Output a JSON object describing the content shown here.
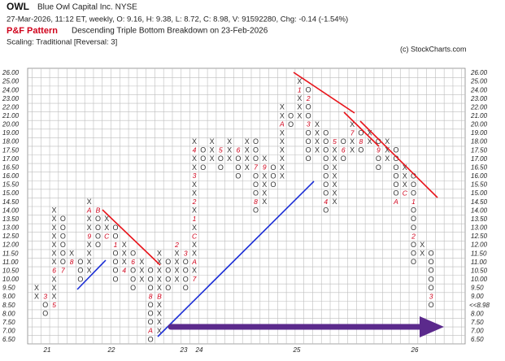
{
  "chart_data": {
    "type": "pnf",
    "title": "OWL",
    "subtitle": "Blue Owl Capital Inc.  NYSE",
    "info": "27-Mar-2026, 11:12 ET, weekly, O: 9.16, H: 9.38, L: 8.72, C: 8.98, V: 91592280, Chg: -0.14 (-1.54%)",
    "pattern_label": "P&F Pattern",
    "pattern": "Descending Triple Bottom Breakdown on 23-Feb-2026",
    "scaling": "Scaling: Traditional [Reversal: 3]",
    "credit": "(c) StockCharts.com",
    "last_price_label": "<<8.98",
    "last_price_level": 8.5,
    "x_labels": [
      "21",
      "22",
      "23",
      "24",
      "25",
      "26"
    ],
    "yticks": [
      {
        "value": 26,
        "label": "26.00"
      },
      {
        "value": 25,
        "label": "25.00"
      },
      {
        "value": 24,
        "label": "24.00"
      },
      {
        "value": 23,
        "label": "23.00"
      },
      {
        "value": 22,
        "label": "22.00"
      },
      {
        "value": 21,
        "label": "21.00"
      },
      {
        "value": 20,
        "label": "20.00"
      },
      {
        "value": 19,
        "label": "19.00"
      },
      {
        "value": 18,
        "label": "18.00"
      },
      {
        "value": 17.5,
        "label": "17.50"
      },
      {
        "value": 17,
        "label": "17.00"
      },
      {
        "value": 16.5,
        "label": "16.50"
      },
      {
        "value": 16,
        "label": "16.00"
      },
      {
        "value": 15.5,
        "label": "15.50"
      },
      {
        "value": 15,
        "label": "15.00"
      },
      {
        "value": 14.5,
        "label": "14.50"
      },
      {
        "value": 14,
        "label": "14.00"
      },
      {
        "value": 13.5,
        "label": "13.50"
      },
      {
        "value": 13,
        "label": "13.00"
      },
      {
        "value": 12.5,
        "label": "12.50"
      },
      {
        "value": 12,
        "label": "12.00"
      },
      {
        "value": 11.5,
        "label": "11.50"
      },
      {
        "value": 11,
        "label": "11.00"
      },
      {
        "value": 10.5,
        "label": "10.50"
      },
      {
        "value": 10,
        "label": "10.00"
      },
      {
        "value": 9.5,
        "label": "9.50"
      },
      {
        "value": 9,
        "label": "9.00"
      },
      {
        "value": 8.5,
        "label": "8.50"
      },
      {
        "value": 8,
        "label": "8.00"
      },
      {
        "value": 7.5,
        "label": "7.50"
      },
      {
        "value": 7,
        "label": "7.00"
      },
      {
        "value": 6.5,
        "label": "6.50"
      }
    ],
    "columns": [
      {
        "type": "X",
        "low": 9,
        "high": 9.5,
        "marks": []
      },
      {
        "type": "O",
        "low": 8,
        "high": 9,
        "marks": [
          {
            "level": 9,
            "label": "3"
          }
        ]
      },
      {
        "type": "X",
        "low": 8.5,
        "high": 14,
        "marks": [
          {
            "level": 8.5,
            "label": "5"
          },
          {
            "level": 10.5,
            "label": "6"
          }
        ]
      },
      {
        "type": "O",
        "low": 10.5,
        "high": 13.5,
        "marks": [
          {
            "level": 10.5,
            "label": "7"
          }
        ]
      },
      {
        "type": "X",
        "low": 11,
        "high": 11.5,
        "marks": [
          {
            "level": 11,
            "label": "8"
          }
        ]
      },
      {
        "type": "O",
        "low": 10,
        "high": 11,
        "marks": []
      },
      {
        "type": "X",
        "low": 10.5,
        "high": 14.5,
        "marks": [
          {
            "level": 12.5,
            "label": "9"
          },
          {
            "level": 14,
            "label": "A"
          }
        ]
      },
      {
        "type": "O",
        "low": 12,
        "high": 14,
        "marks": [
          {
            "level": 14,
            "label": "B"
          }
        ]
      },
      {
        "type": "X",
        "low": 12.5,
        "high": 13.5,
        "marks": [
          {
            "level": 12.5,
            "label": "C"
          }
        ]
      },
      {
        "type": "O",
        "low": 10,
        "high": 13,
        "marks": [
          {
            "level": 12,
            "label": "1"
          }
        ]
      },
      {
        "type": "X",
        "low": 10.5,
        "high": 12,
        "marks": [
          {
            "level": 10.5,
            "label": "4"
          }
        ]
      },
      {
        "type": "O",
        "low": 9.5,
        "high": 11.5,
        "marks": [
          {
            "level": 11,
            "label": "6"
          }
        ]
      },
      {
        "type": "X",
        "low": 10,
        "high": 11,
        "marks": []
      },
      {
        "type": "O",
        "low": 6.5,
        "high": 10.5,
        "marks": [
          {
            "level": 9,
            "label": "8"
          },
          {
            "level": 7,
            "label": "A"
          }
        ]
      },
      {
        "type": "X",
        "low": 7,
        "high": 11.5,
        "marks": [
          {
            "level": 9,
            "label": "B"
          }
        ]
      },
      {
        "type": "O",
        "low": 9.5,
        "high": 11,
        "marks": []
      },
      {
        "type": "X",
        "low": 10,
        "high": 12,
        "marks": [
          {
            "level": 12,
            "label": "2"
          }
        ]
      },
      {
        "type": "O",
        "low": 9.5,
        "high": 11.5,
        "marks": [
          {
            "level": 11.5,
            "label": "3"
          }
        ]
      },
      {
        "type": "X",
        "low": 10,
        "high": 18,
        "marks": [
          {
            "level": 10,
            "label": "7"
          },
          {
            "level": 11,
            "label": "A"
          },
          {
            "level": 12.5,
            "label": "C"
          },
          {
            "level": 13.5,
            "label": "1"
          },
          {
            "level": 14.5,
            "label": "2"
          },
          {
            "level": 16,
            "label": "3"
          },
          {
            "level": 17.5,
            "label": "4"
          }
        ]
      },
      {
        "type": "O",
        "low": 16.5,
        "high": 17.5,
        "marks": []
      },
      {
        "type": "X",
        "low": 17,
        "high": 18,
        "marks": []
      },
      {
        "type": "O",
        "low": 16.5,
        "high": 17.5,
        "marks": [
          {
            "level": 17.5,
            "label": "5"
          }
        ]
      },
      {
        "type": "X",
        "low": 17,
        "high": 18,
        "marks": []
      },
      {
        "type": "O",
        "low": 16,
        "high": 17.5,
        "marks": [
          {
            "level": 17.5,
            "label": "6"
          }
        ]
      },
      {
        "type": "X",
        "low": 16.5,
        "high": 18.5,
        "marks": []
      },
      {
        "type": "O",
        "low": 14,
        "high": 18,
        "marks": [
          {
            "level": 16.5,
            "label": "7"
          },
          {
            "level": 14.5,
            "label": "8"
          }
        ]
      },
      {
        "type": "X",
        "low": 14.5,
        "high": 17,
        "marks": [
          {
            "level": 16.5,
            "label": "9"
          }
        ]
      },
      {
        "type": "O",
        "low": 15.5,
        "high": 16.5,
        "marks": []
      },
      {
        "type": "X",
        "low": 16,
        "high": 22,
        "marks": [
          {
            "level": 20,
            "label": "A"
          }
        ]
      },
      {
        "type": "O",
        "low": 20,
        "high": 21,
        "marks": []
      },
      {
        "type": "X",
        "low": 20.5,
        "high": 25,
        "marks": [
          {
            "level": 24,
            "label": "1"
          }
        ]
      },
      {
        "type": "O",
        "low": 17,
        "high": 24,
        "marks": [
          {
            "level": 23,
            "label": "2"
          },
          {
            "level": 20,
            "label": "3"
          }
        ]
      },
      {
        "type": "X",
        "low": 17.5,
        "high": 20,
        "marks": []
      },
      {
        "type": "O",
        "low": 14,
        "high": 19,
        "marks": [
          {
            "level": 14.5,
            "label": "4"
          }
        ]
      },
      {
        "type": "X",
        "low": 14.5,
        "high": 18.5,
        "marks": [
          {
            "level": 18,
            "label": "5"
          }
        ]
      },
      {
        "type": "O",
        "low": 17,
        "high": 18,
        "marks": [
          {
            "level": 17.5,
            "label": "6"
          }
        ]
      },
      {
        "type": "X",
        "low": 17.5,
        "high": 20,
        "marks": [
          {
            "level": 19,
            "label": "7"
          }
        ]
      },
      {
        "type": "O",
        "low": 17.5,
        "high": 19.5,
        "marks": [
          {
            "level": 18,
            "label": "8"
          }
        ]
      },
      {
        "type": "X",
        "low": 18,
        "high": 19,
        "marks": []
      },
      {
        "type": "O",
        "low": 16.5,
        "high": 18.5,
        "marks": [
          {
            "level": 17.5,
            "label": "9"
          }
        ]
      },
      {
        "type": "X",
        "low": 17,
        "high": 18,
        "marks": []
      },
      {
        "type": "O",
        "low": 14.5,
        "high": 17.5,
        "marks": [
          {
            "level": 14.5,
            "label": "A"
          }
        ]
      },
      {
        "type": "X",
        "low": 15,
        "high": 16.5,
        "marks": [
          {
            "level": 15,
            "label": "C"
          }
        ]
      },
      {
        "type": "O",
        "low": 11,
        "high": 16,
        "marks": [
          {
            "level": 14.5,
            "label": "1"
          },
          {
            "level": 12.5,
            "label": "2"
          }
        ]
      },
      {
        "type": "X",
        "low": 11.5,
        "high": 12,
        "marks": []
      },
      {
        "type": "O",
        "low": 8.5,
        "high": 11.5,
        "marks": [
          {
            "level": 9,
            "label": "3"
          }
        ]
      }
    ]
  }
}
